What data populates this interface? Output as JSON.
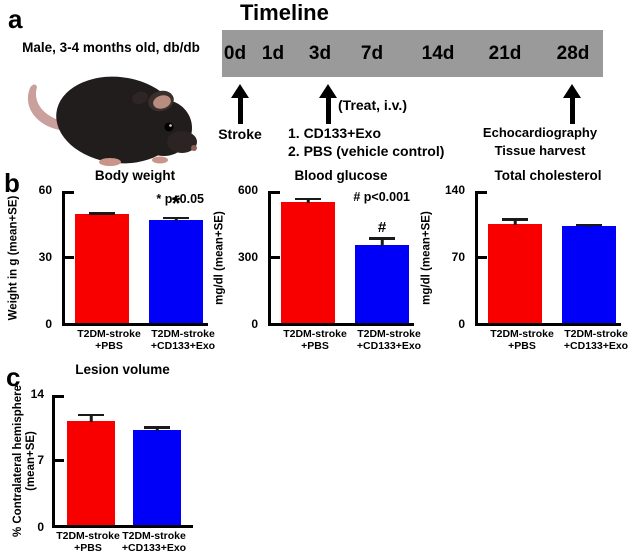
{
  "colors": {
    "bar_red": "#f80000",
    "bar_blue": "#0000f8",
    "timeline_gray": "#9a9a9a",
    "error_bar": "#1a1a1a"
  },
  "panel_a": {
    "letter": "a",
    "subject": "Male, 3-4 months old, db/db",
    "timeline_title": "Timeline",
    "days": [
      "0d",
      "1d",
      "3d",
      "7d",
      "14d",
      "21d",
      "28d"
    ],
    "stroke_label": "Stroke",
    "treat_label": "(Treat, i.v.)",
    "treat_option_1": "1. CD133+Exo",
    "treat_option_2": "2. PBS (vehicle control)",
    "end_label_1": "Echocardiography",
    "end_label_2": "Tissue harvest"
  },
  "panel_b": {
    "letter": "b"
  },
  "panel_c": {
    "letter": "c"
  },
  "chart_data": [
    {
      "type": "bar",
      "title": "Body weight",
      "ylabel": "Weight in g (mean+SE)",
      "ylabel_line2": "",
      "ylim": [
        0,
        60
      ],
      "yticks": [
        0,
        30,
        60
      ],
      "categories": [
        [
          "T2DM-stroke",
          "+PBS"
        ],
        [
          "T2DM-stroke",
          "+CD133+Exo"
        ]
      ],
      "values": [
        49.5,
        47
      ],
      "errors": [
        0.8,
        1.2
      ],
      "bar_colors": [
        "#f80000",
        "#0000f8"
      ],
      "annotation": "* p<0.05",
      "sig_markers": [
        "",
        "*"
      ]
    },
    {
      "type": "bar",
      "title": "Blood glucose",
      "ylabel": "mg/dl (mean+SE)",
      "ylabel_line2": "",
      "ylim": [
        0,
        600
      ],
      "yticks": [
        0,
        300,
        600
      ],
      "categories": [
        [
          "T2DM-stroke",
          "+PBS"
        ],
        [
          "T2DM-stroke",
          "+CD133+Exo"
        ]
      ],
      "values": [
        550,
        355
      ],
      "errors": [
        20,
        35
      ],
      "bar_colors": [
        "#f80000",
        "#0000f8"
      ],
      "annotation": "# p<0.001",
      "sig_markers": [
        "",
        "#"
      ]
    },
    {
      "type": "bar",
      "title": "Total cholesterol",
      "ylabel": "mg/dl (mean+SE)",
      "ylabel_line2": "",
      "ylim": [
        0,
        140
      ],
      "yticks": [
        0,
        70,
        140
      ],
      "categories": [
        [
          "T2DM-stroke",
          "+PBS"
        ],
        [
          "T2DM-stroke",
          "+CD133+Exo"
        ]
      ],
      "values": [
        105,
        103
      ],
      "errors": [
        6,
        2.5
      ],
      "bar_colors": [
        "#f80000",
        "#0000f8"
      ],
      "annotation": "",
      "sig_markers": [
        "",
        ""
      ]
    },
    {
      "type": "bar",
      "title": "Lesion volume",
      "ylabel": "% Contralateral hemisphere",
      "ylabel_line2": "(mean+SE)",
      "ylim": [
        0,
        14
      ],
      "yticks": [
        0,
        7,
        14
      ],
      "categories": [
        [
          "T2DM-stroke",
          "+PBS"
        ],
        [
          "T2DM-stroke",
          "+CD133+Exo"
        ]
      ],
      "values": [
        11.2,
        10.2
      ],
      "errors": [
        0.8,
        0.45
      ],
      "bar_colors": [
        "#f80000",
        "#0000f8"
      ],
      "annotation": "",
      "sig_markers": [
        "",
        ""
      ]
    }
  ]
}
